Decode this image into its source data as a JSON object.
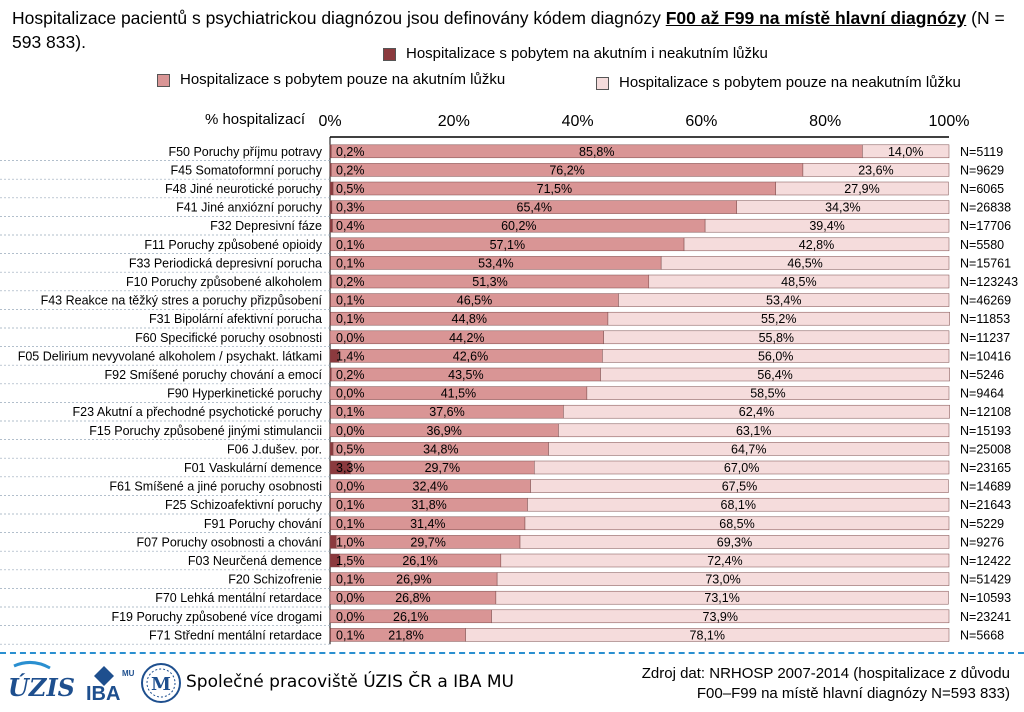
{
  "title": {
    "prefix": "Hospitalizace pacientů s psychiatrickou diagnózou jsou definovány kódem diagnózy ",
    "bold": "F00 až F99 na místě hlavní diagnózy",
    "suffix": " (N = 593 833)."
  },
  "footer": {
    "center": "Společné pracoviště ÚZIS ČR a IBA MU",
    "source_line1": "Zdroj dat: NRHOSP 2007-2014 (hospitalizace z důvodu",
    "source_line2": "F00–F99 na místě hlavní diagnózy N=593 833)",
    "logos": {
      "uzis": "ÚZIS",
      "iba": "IBA",
      "iba_small": "MU",
      "mu": "M"
    }
  },
  "chart_data": {
    "type": "bar",
    "orientation": "horizontal",
    "stacked": true,
    "xlabel": "% hospitalizací",
    "xlim": [
      0,
      100
    ],
    "xticks": [
      "0%",
      "20%",
      "40%",
      "60%",
      "80%",
      "100%"
    ],
    "series": [
      {
        "name": "Hospitalizace s pobytem na akutním i neakutním lůžku",
        "color": "#8b3a3e",
        "values": [
          0.2,
          0.2,
          0.5,
          0.3,
          0.4,
          0.1,
          0.1,
          0.2,
          0.1,
          0.1,
          0.0,
          1.4,
          0.2,
          0.0,
          0.1,
          0.0,
          0.5,
          3.3,
          0.0,
          0.1,
          0.1,
          1.0,
          1.5,
          0.1,
          0.0,
          0.0,
          0.1
        ],
        "labels": [
          "0,2%",
          "0,2%",
          "0,5%",
          "0,3%",
          "0,4%",
          "0,1%",
          "0,1%",
          "0,2%",
          "0,1%",
          "0,1%",
          "0,0%",
          "1,4%",
          "0,2%",
          "0,0%",
          "0,1%",
          "0,0%",
          "0,5%",
          "3,3%",
          "0,0%",
          "0,1%",
          "0,1%",
          "1,0%",
          "1,5%",
          "0,1%",
          "0,0%",
          "0,0%",
          "0,1%"
        ]
      },
      {
        "name": "Hospitalizace s pobytem pouze na akutním lůžku",
        "color": "#d99595",
        "values": [
          85.8,
          76.2,
          71.5,
          65.4,
          60.2,
          57.1,
          53.4,
          51.3,
          46.5,
          44.8,
          44.2,
          42.6,
          43.5,
          41.5,
          37.6,
          36.9,
          34.8,
          29.7,
          32.4,
          31.8,
          31.4,
          29.7,
          26.1,
          26.9,
          26.8,
          26.1,
          21.8
        ],
        "labels": [
          "85,8%",
          "76,2%",
          "71,5%",
          "65,4%",
          "60,2%",
          "57,1%",
          "53,4%",
          "51,3%",
          "46,5%",
          "44,8%",
          "44,2%",
          "42,6%",
          "43,5%",
          "41,5%",
          "37,6%",
          "36,9%",
          "34,8%",
          "29,7%",
          "32,4%",
          "31,8%",
          "31,4%",
          "29,7%",
          "26,1%",
          "26,9%",
          "26,8%",
          "26,1%",
          "21,8%"
        ]
      },
      {
        "name": "Hospitalizace s pobytem pouze na neakutním lůžku",
        "color": "#f5dcdc",
        "values": [
          14.0,
          23.6,
          27.9,
          34.3,
          39.4,
          42.8,
          46.5,
          48.5,
          53.4,
          55.2,
          55.8,
          56.0,
          56.4,
          58.5,
          62.4,
          63.1,
          64.7,
          67.0,
          67.5,
          68.1,
          68.5,
          69.3,
          72.4,
          73.0,
          73.1,
          73.9,
          78.1
        ],
        "labels": [
          "14,0%",
          "23,6%",
          "27,9%",
          "34,3%",
          "39,4%",
          "42,8%",
          "46,5%",
          "48,5%",
          "53,4%",
          "55,2%",
          "55,8%",
          "56,0%",
          "56,4%",
          "58,5%",
          "62,4%",
          "63,1%",
          "64,7%",
          "67,0%",
          "67,5%",
          "68,1%",
          "68,5%",
          "69,3%",
          "72,4%",
          "73,0%",
          "73,1%",
          "73,9%",
          "78,1%"
        ]
      }
    ],
    "categories": [
      "F50 Poruchy příjmu potravy",
      "F45 Somatoformní poruchy",
      "F48 Jiné neurotické poruchy",
      "F41 Jiné anxiózní poruchy",
      "F32 Depresivní fáze",
      "F11 Poruchy způsobené opioidy",
      "F33 Periodická depresivní porucha",
      "F10 Poruchy způsobené alkoholem",
      "F43 Reakce na těžký stres a poruchy přizpůsobení",
      "F31 Bipolární afektivní porucha",
      "F60 Specifické poruchy osobnosti",
      "F05 Delirium nevyvolané alkoholem / psychakt. látkami",
      "F92 Smíšené poruchy chování a emocí",
      "F90 Hyperkinetické poruchy",
      "F23 Akutní a přechodné psychotické poruchy",
      "F15 Poruchy způsobené jinými stimulancii",
      "F06 J.dušev. por.",
      "F01 Vaskulární demence",
      "F61 Smíšené a jiné poruchy osobnosti",
      "F25 Schizoafektivní poruchy",
      "F91 Poruchy chování",
      "F07 Poruchy osobnosti a chování",
      "F03 Neurčená demence",
      "F20 Schizofrenie",
      "F70 Lehká mentální retardace",
      "F19 Poruchy způsobené více drogami",
      "F71 Střední mentální retardace"
    ],
    "n_labels": [
      "N=5119",
      "N=9629",
      "N=6065",
      "N=26838",
      "N=17706",
      "N=5580",
      "N=15761",
      "N=123243",
      "N=46269",
      "N=11853",
      "N=11237",
      "N=10416",
      "N=5246",
      "N=9464",
      "N=12108",
      "N=15193",
      "N=25008",
      "N=23165",
      "N=14689",
      "N=21643",
      "N=5229",
      "N=9276",
      "N=12422",
      "N=51429",
      "N=10593",
      "N=23241",
      "N=5668"
    ],
    "legend_position": "top",
    "grid": false
  }
}
